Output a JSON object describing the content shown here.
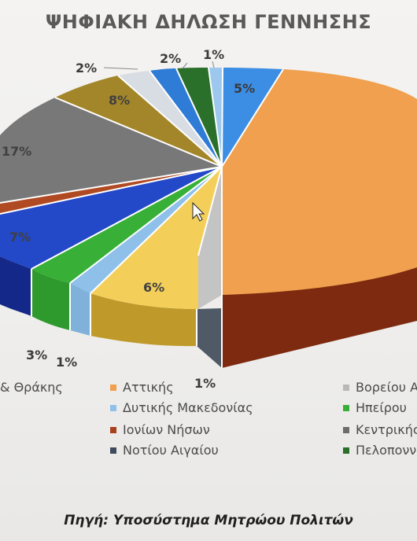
{
  "colors": {
    "attiki": "#f0a04e",
    "voreiou_aigaiou": "#b8b8b8",
    "dytikis_makedonias": "#8ec0ea",
    "ipeirou": "#38b038",
    "ionion_nison": "#a8421c",
    "kentrikis": "#6c6c6c",
    "notiou_aigaiou": "#3e4c5c",
    "peloponnisou": "#2a6f2a",
    "thrakis": "#1f3fae"
  },
  "chart_data": {
    "type": "pie",
    "title": "ΨΗΦΙΑΚΗ ΔΗΛΩΣΗ ΓΕΝΝΗΣΗΣ",
    "slice_labels": [
      "5%",
      "1%",
      "2%",
      "2%",
      "8%",
      "17%",
      "7%",
      "3%",
      "1%",
      "6%",
      "1%"
    ],
    "legend": [
      {
        "label": "& Θράκης",
        "color": "#1f3fae"
      },
      {
        "label": "Αττικής",
        "color": "#f0a04e"
      },
      {
        "label": "Βορείου Α",
        "color": "#b8b8b8"
      },
      {
        "label": "Δυτικής Μακεδονίας",
        "color": "#8ec0ea"
      },
      {
        "label": "Ηπείρου",
        "color": "#38b038"
      },
      {
        "label": "Ιονίων Νήσων",
        "color": "#a8421c"
      },
      {
        "label": "Κεντρικής",
        "color": "#6c6c6c"
      },
      {
        "label": "Νοτίου Αιγαίου",
        "color": "#3e4c5c"
      },
      {
        "label": "Πελοποννη",
        "color": "#2a6f2a"
      }
    ],
    "legend_placement": "bottom"
  },
  "footer": {
    "source": "Πηγή: Υποσύστημα Μητρώου Πολιτών"
  }
}
